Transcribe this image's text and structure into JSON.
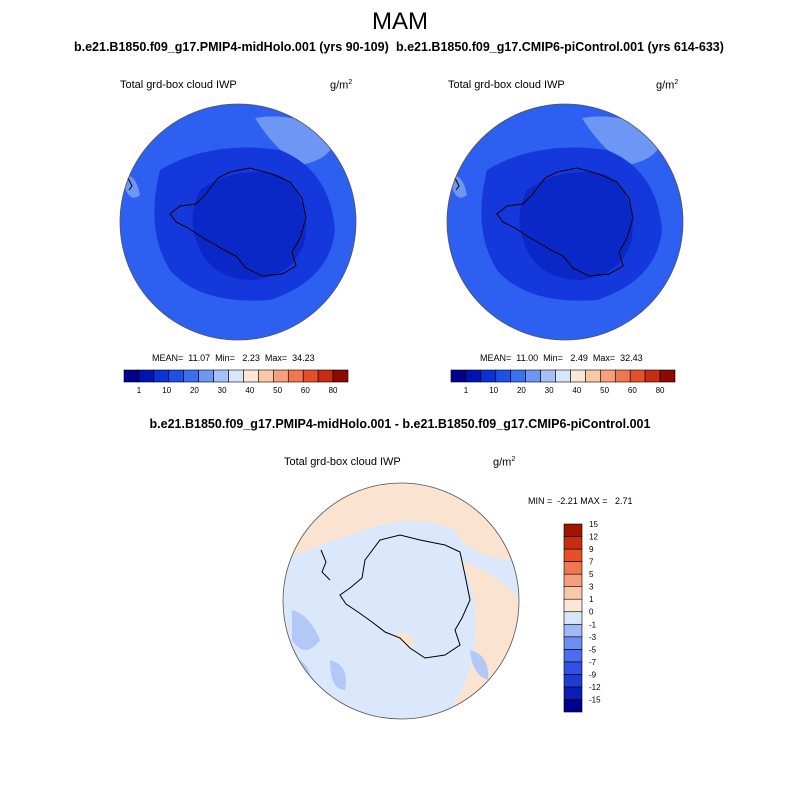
{
  "figure": {
    "season": "MAM",
    "left_case": "b.e21.B1850.f09_g17.PMIP4-midHolo.001 (yrs 90-109)",
    "right_case": "b.e21.B1850.f09_g17.CMIP6-piControl.001 (yrs 614-633)",
    "diff_title": "b.e21.B1850.f09_g17.PMIP4-midHolo.001 - b.e21.B1850.f09_g17.CMIP6-piControl.001"
  },
  "panels": {
    "left": {
      "variable": "Total grd-box cloud IWP",
      "units": "g/m",
      "units_exp": "2",
      "stats": "MEAN=  11.07  Min=   2.23  Max=  34.23"
    },
    "right": {
      "variable": "Total grd-box cloud IWP",
      "units": "g/m",
      "units_exp": "2",
      "stats": "MEAN=  11.00  Min=   2.49  Max=  32.43"
    },
    "diff": {
      "variable": "Total grd-box cloud IWP",
      "units": "g/m",
      "units_exp": "2",
      "stats": "MIN =  -2.21 MAX =   2.71"
    }
  },
  "colorbars": {
    "mean": {
      "colors": [
        "#00008c",
        "#0014b4",
        "#0a32d2",
        "#1e50e6",
        "#3c6ef0",
        "#6e96f5",
        "#a5bff8",
        "#d8e6fb",
        "#fbe6d8",
        "#f8c8aa",
        "#f5a07d",
        "#f07850",
        "#e65028",
        "#c82d14",
        "#8c0a00"
      ],
      "labels": [
        "1",
        "10",
        "20",
        "30",
        "40",
        "50",
        "60",
        "80"
      ]
    },
    "diff": {
      "colors": [
        "#00008c",
        "#0a1eb4",
        "#1e3cd2",
        "#3250e6",
        "#4b6ef0",
        "#6e8cf5",
        "#a0b9f8",
        "#d8e6fb",
        "#fbe6d8",
        "#f8c8aa",
        "#f5a07d",
        "#f07850",
        "#e65028",
        "#c82d14",
        "#a01400"
      ],
      "labels": [
        "-15",
        "-12",
        "-9",
        "-7",
        "-5",
        "-3",
        "-1",
        "0",
        "1",
        "3",
        "5",
        "7",
        "9",
        "12",
        "15"
      ]
    }
  },
  "map_colors": {
    "mean_base": "#2d5ff0",
    "mean_mid": "#1438dc",
    "mean_core": "#0a28c8",
    "mean_light": "#6e96f5",
    "diff_base": "#dbe8fb",
    "diff_pos": "#fbe3d2",
    "diff_neg": "#b4c8f8",
    "coast": "#000000"
  }
}
